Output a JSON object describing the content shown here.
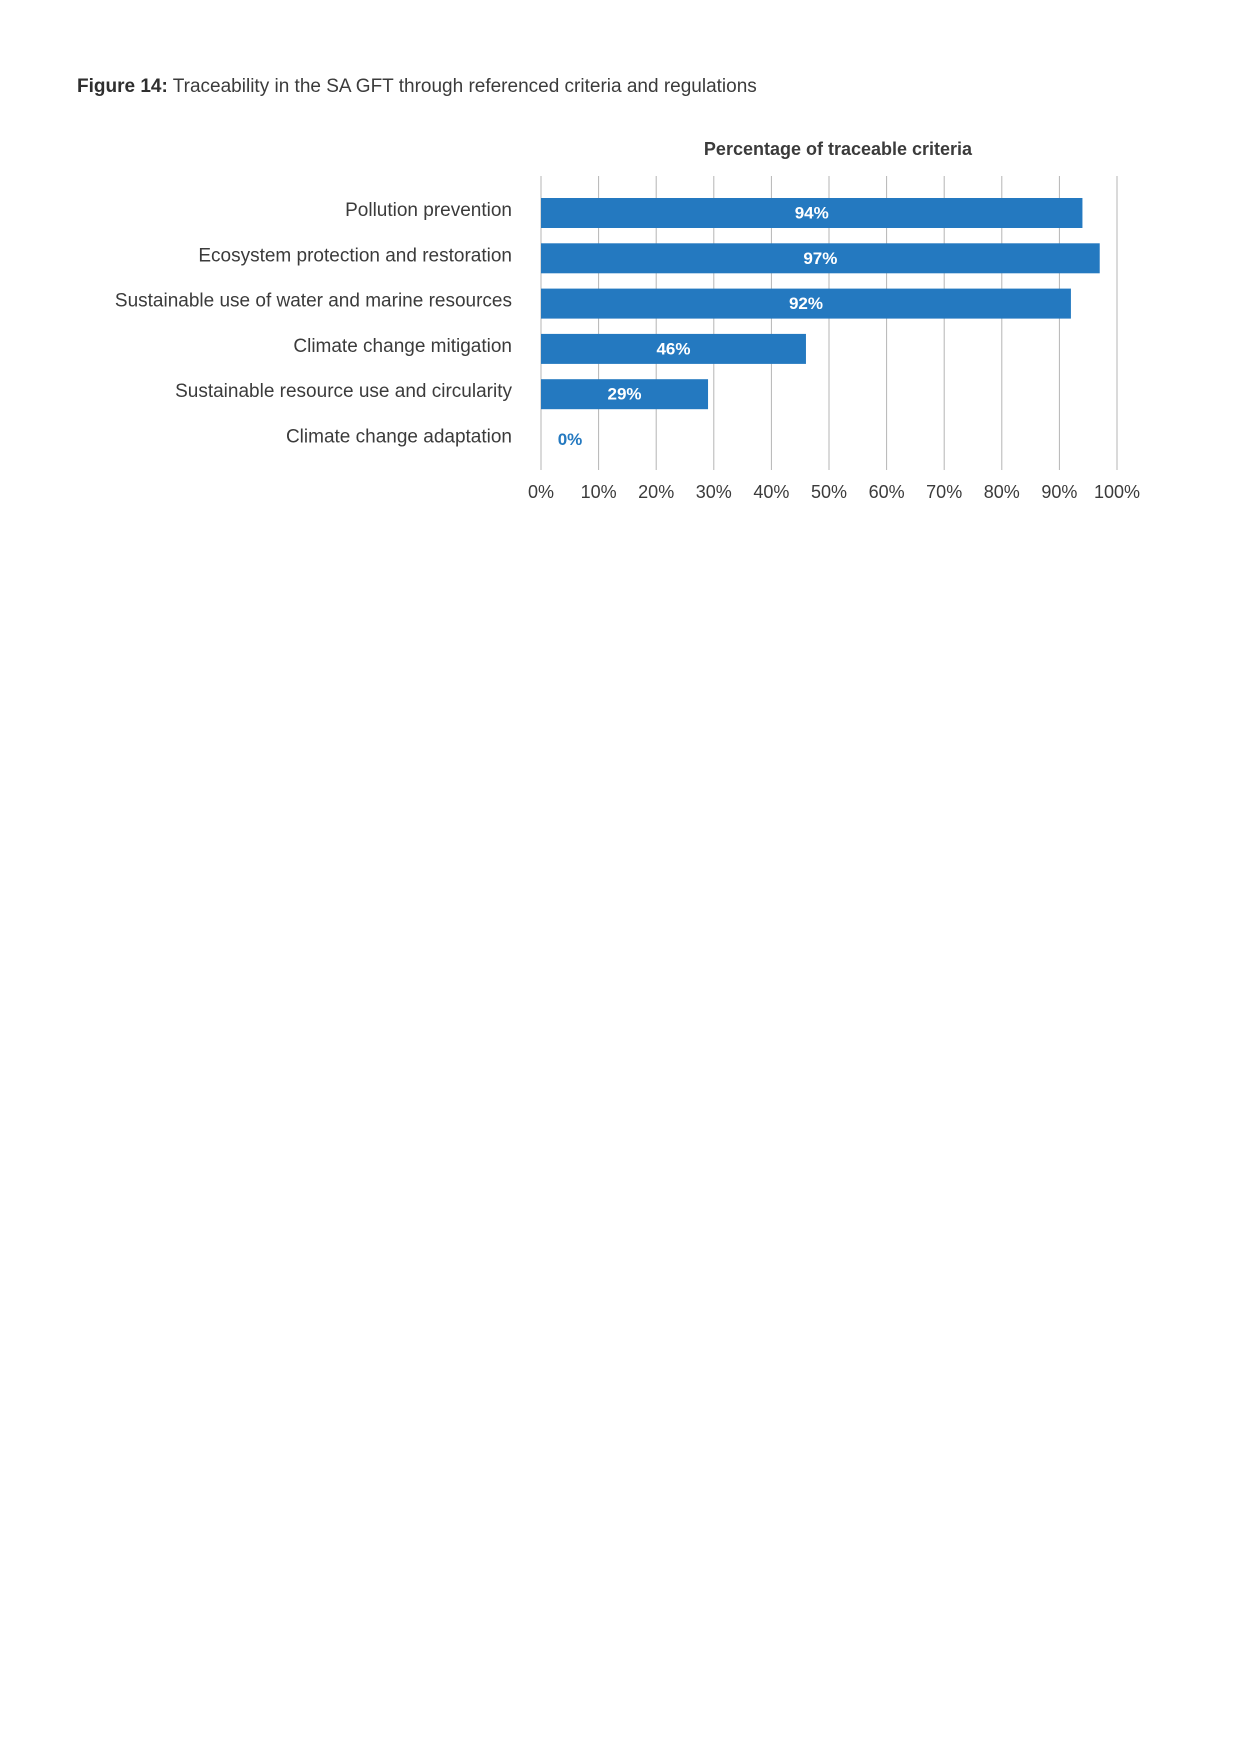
{
  "figure": {
    "label": "Figure 14:",
    "caption": "Traceability in the SA GFT through referenced criteria and regulations"
  },
  "colors": {
    "bar": "#2479c0",
    "bar_label_inside": "#ffffff",
    "bar_label_outside": "#2479c0",
    "grid": "#b5b5b5"
  },
  "chart_data": {
    "type": "bar",
    "orientation": "horizontal",
    "title": "Percentage of traceable criteria",
    "categories": [
      "Pollution prevention",
      "Ecosystem protection and restoration",
      "Sustainable use of water and marine resources",
      "Climate change mitigation",
      "Sustainable resource use and circularity",
      "Climate change adaptation"
    ],
    "values": [
      94,
      97,
      92,
      46,
      29,
      0
    ],
    "value_labels": [
      "94%",
      "97%",
      "92%",
      "46%",
      "29%",
      "0%"
    ],
    "xlim": [
      0,
      100
    ],
    "xticks": [
      0,
      10,
      20,
      30,
      40,
      50,
      60,
      70,
      80,
      90,
      100
    ],
    "xtick_labels": [
      "0%",
      "10%",
      "20%",
      "30%",
      "40%",
      "50%",
      "60%",
      "70%",
      "80%",
      "90%",
      "100%"
    ],
    "grid": "vertical",
    "legend": "none"
  }
}
